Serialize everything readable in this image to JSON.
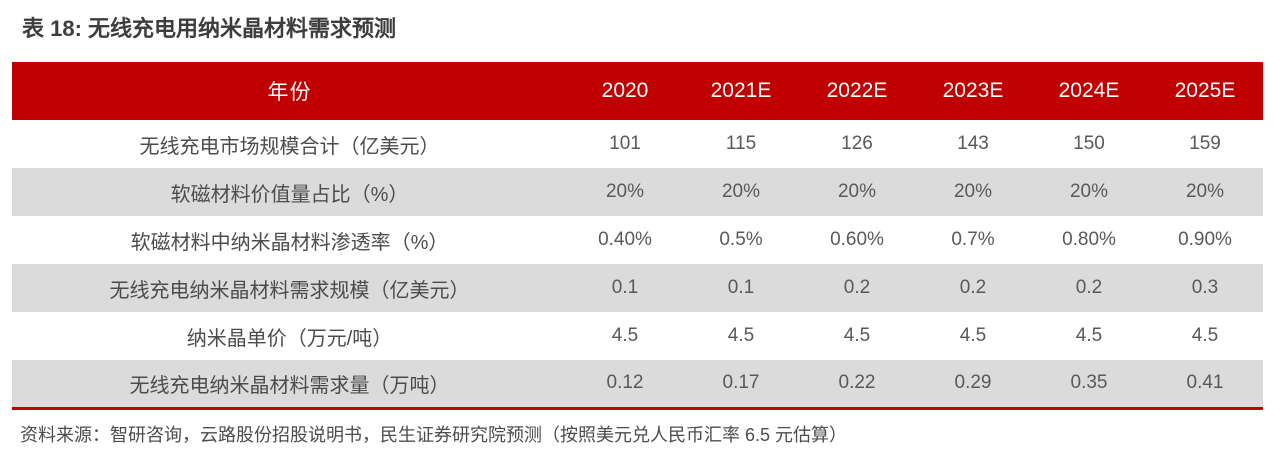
{
  "title": "表 18: 无线充电用纳米晶材料需求预测",
  "table": {
    "header": {
      "label": "年份",
      "years": [
        "2020",
        "2021E",
        "2022E",
        "2023E",
        "2024E",
        "2025E"
      ]
    },
    "rows": [
      {
        "label": "无线充电市场规模合计（亿美元）",
        "values": [
          "101",
          "115",
          "126",
          "143",
          "150",
          "159"
        ]
      },
      {
        "label": "软磁材料价值量占比（%）",
        "values": [
          "20%",
          "20%",
          "20%",
          "20%",
          "20%",
          "20%"
        ]
      },
      {
        "label": "软磁材料中纳米晶材料渗透率（%）",
        "values": [
          "0.40%",
          "0.5%",
          "0.60%",
          "0.7%",
          "0.80%",
          "0.90%"
        ]
      },
      {
        "label": "无线充电纳米晶材料需求规模（亿美元）",
        "values": [
          "0.1",
          "0.1",
          "0.2",
          "0.2",
          "0.2",
          "0.3"
        ]
      },
      {
        "label": "纳米晶单价（万元/吨）",
        "values": [
          "4.5",
          "4.5",
          "4.5",
          "4.5",
          "4.5",
          "4.5"
        ]
      },
      {
        "label": "无线充电纳米晶材料需求量（万吨）",
        "values": [
          "0.12",
          "0.17",
          "0.22",
          "0.29",
          "0.35",
          "0.41"
        ]
      }
    ]
  },
  "source_note": "资料来源：智研咨询，云路股份招股说明书，民生证券研究院预测（按照美元兑人民币汇率 6.5 元估算）",
  "colors": {
    "header_bg": "#c00000",
    "header_text": "#ffffff",
    "alt_row_bg": "#dbdbdb",
    "body_text": "#595959",
    "label_text": "#4c4c4c",
    "title_text": "#3d3d3d",
    "bottom_rule": "#c00000"
  }
}
